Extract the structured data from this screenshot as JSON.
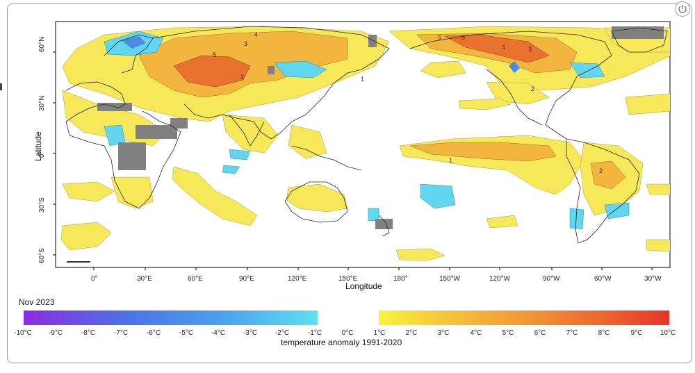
{
  "map": {
    "title": "Nov 2023",
    "x_axis_title": "Longitude",
    "y_axis_title": "Latitude",
    "longitude_labels": [
      "0°",
      "30°E",
      "60°E",
      "90°E",
      "120°E",
      "150°E",
      "180°",
      "150°W",
      "120°W",
      "90°W",
      "60°W",
      "30°W"
    ],
    "latitude_labels": [
      "60°N",
      "30°N",
      "0°",
      "30°S",
      "60°S"
    ],
    "contour_labels": [
      "4",
      "3",
      "5",
      "5",
      "3",
      "4",
      "3",
      "2",
      "1",
      "2",
      "1",
      "2"
    ],
    "colors": {
      "negative_strong": "#8e2be2",
      "negative_weak": "#5fe0f0",
      "positive_weak": "#f6f33a",
      "positive_strong": "#e8352a",
      "missing": "#808080"
    }
  },
  "colorbar": {
    "caption": "temperature anomaly 1991-2020",
    "negative_ticks": [
      "-10°C",
      "-9°C",
      "-8°C",
      "-7°C",
      "-6°C",
      "-5°C",
      "-4°C",
      "-3°C",
      "-2°C",
      "-1°C"
    ],
    "zero_tick": "0°C",
    "positive_ticks": [
      "1°C",
      "2°C",
      "3°C",
      "4°C",
      "5°C",
      "6°C",
      "7°C",
      "8°C",
      "9°C",
      "10°C"
    ]
  }
}
